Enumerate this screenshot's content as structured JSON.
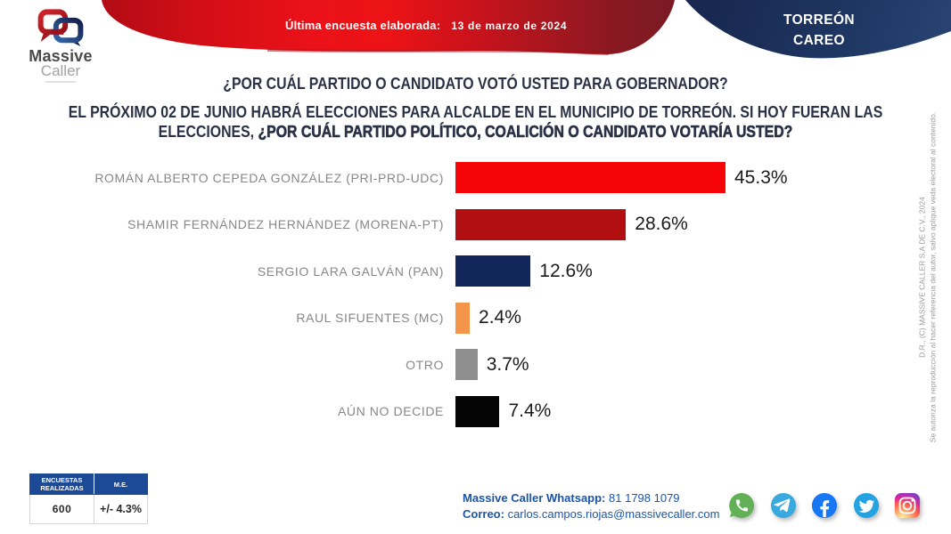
{
  "banner": {
    "last_survey_label": "Última encuesta elaborada:",
    "last_survey_date": "13 de marzo de 2024",
    "region_line1": "TORREÓN",
    "region_line2": "CAREO"
  },
  "logo": {
    "name_line1": "Massive",
    "name_line2": "Caller"
  },
  "questions": {
    "q1": "¿POR CUÁL PARTIDO O CANDIDATO VOTÓ USTED PARA GOBERNADOR?",
    "q2_line1": "EL PRÓXIMO 02 DE JUNIO HABRÁ ELECCIONES PARA ALCALDE EN EL MUNICIPIO DE TORREÓN. SI HOY FUERAN LAS",
    "q2_line2_regular": "ELECCIONES, ",
    "q2_line2_bold": "¿POR CUÁL PARTIDO POLÍTICO, COALICIÓN O CANDIDATO VOTARÍA USTED?"
  },
  "chart_data": {
    "type": "bar",
    "orientation": "horizontal",
    "categories": [
      "ROMÁN ALBERTO CEPEDA GONZÁLEZ (PRI-PRD-UDC)",
      "SHAMIR FERNÁNDEZ HERNÁNDEZ (MORENA-PT)",
      "SERGIO LARA GALVÁN (PAN)",
      "RAUL SIFUENTES (MC)",
      "OTRO",
      "AÚN NO DECIDE"
    ],
    "values": [
      45.3,
      28.6,
      12.6,
      2.4,
      3.7,
      7.4
    ],
    "value_labels": [
      "45.3%",
      "28.6%",
      "12.6%",
      "2.4%",
      "3.7%",
      "7.4%"
    ],
    "colors": [
      "#f70408",
      "#b20f12",
      "#13265c",
      "#f5954a",
      "#8f8f8f",
      "#050505"
    ],
    "xlim": [
      0,
      50
    ],
    "grid": false,
    "legend": false
  },
  "footer": {
    "table": {
      "header1": "ENCUESTAS REALIZADAS",
      "header2": "M.E.",
      "value1": "600",
      "value2": "+/- 4.3%"
    },
    "whatsapp_label": "Massive Caller Whatsapp:",
    "whatsapp_number": "81 1798 1079",
    "email_label": "Correo:",
    "email": "carlos.campos.riojas@massivecaller.com",
    "social": [
      "whatsapp",
      "telegram",
      "facebook",
      "twitter",
      "instagram"
    ]
  },
  "side_note": {
    "line1": "D.R., (C) MASSIVE CALLER S.A DE C.V., 2024",
    "line2": "Se autoriza la reproducción al hacer referencia del autor, salvo aplique veda electoral al contenido."
  },
  "colors": {
    "banner_red_bright": "#ec1316",
    "banner_red_dark": "#7a1b24",
    "banner_blue": "#1f3864",
    "table_header_blue": "#1c4a96",
    "contact_blue": "#1c55a5",
    "title_dark": "#2a3147",
    "label_gray": "#878787"
  }
}
